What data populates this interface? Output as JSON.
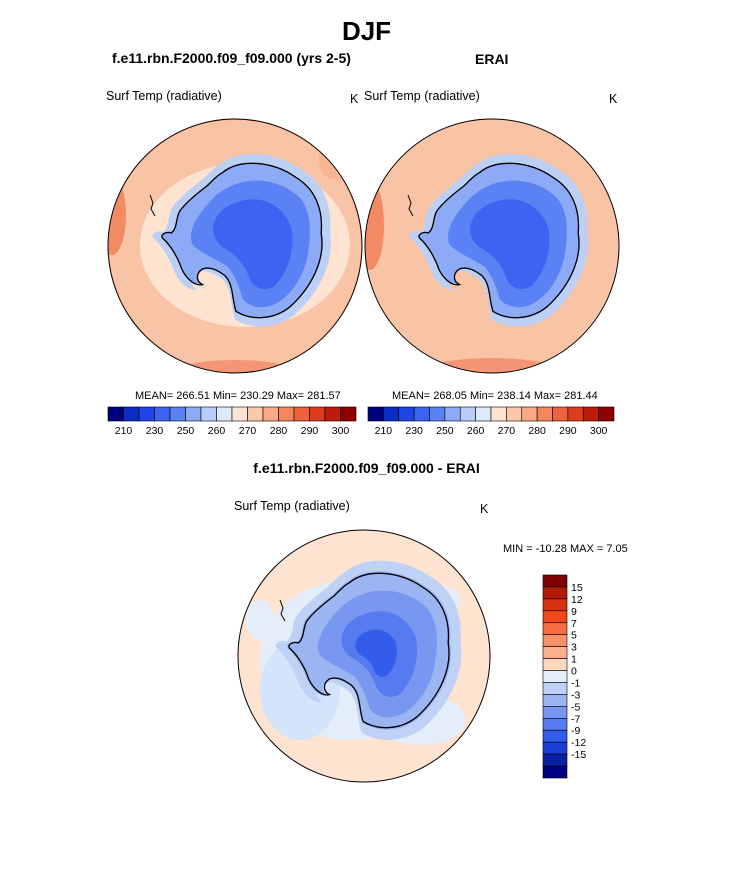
{
  "title": "DJF",
  "panels": {
    "model": {
      "title": "f.e11.rbn.F2000.f09_f09.000 (yrs 2-5)",
      "variable": "Surf Temp (radiative)",
      "units": "K",
      "stats": {
        "mean": "266.51",
        "min": "230.29",
        "max": "281.57"
      },
      "stats_text": "MEAN= 266.51  Min= 230.29  Max= 281.57"
    },
    "obs": {
      "title": "ERAI",
      "variable": "Surf Temp (radiative)",
      "units": "K",
      "stats": {
        "mean": "268.05",
        "min": "238.14",
        "max": "281.44"
      },
      "stats_text": "MEAN= 268.05  Min= 238.14  Max= 281.44"
    },
    "diff": {
      "title": "f.e11.rbn.F2000.f09_f09.000 - ERAI",
      "variable": "Surf Temp (radiative)",
      "units": "K",
      "minmax_text": "MIN = -10.28 MAX =   7.05"
    }
  },
  "abs_colorbar": {
    "colors": [
      "#00007f",
      "#0a2dc4",
      "#1e46e6",
      "#3c64f0",
      "#5a82f5",
      "#8caaf5",
      "#b9cdf8",
      "#dceafa",
      "#fde3d0",
      "#fbc9aa",
      "#f9a985",
      "#f6865e",
      "#ef603c",
      "#de3c1e",
      "#bf1a0b",
      "#8c0000"
    ],
    "tick_labels": [
      "210",
      "230",
      "250",
      "260",
      "270",
      "280",
      "290",
      "300"
    ]
  },
  "diff_colorbar": {
    "colors": [
      "#7f0000",
      "#b21a08",
      "#d8320e",
      "#f0481a",
      "#f56d40",
      "#f79068",
      "#f9b190",
      "#fdd8bd",
      "#e3eefa",
      "#bfd2f6",
      "#9ab5f2",
      "#7897f0",
      "#567af0",
      "#345cea",
      "#1a3ed6",
      "#0a20a6",
      "#000080"
    ],
    "tick_labels": [
      "15",
      "12",
      "9",
      "7",
      "5",
      "3",
      "1",
      "0",
      "-1",
      "-3",
      "-5",
      "-7",
      "-9",
      "-12",
      "-15"
    ]
  },
  "colors": {
    "ocean_warm": "#f9c4a6",
    "ocean_hot": "#f49a78",
    "ice_shelf": "#bcd0f5",
    "plateau": "#3f6cf0",
    "diff_background": "#fde3d0",
    "diff_cool": "#d4e4fa"
  }
}
